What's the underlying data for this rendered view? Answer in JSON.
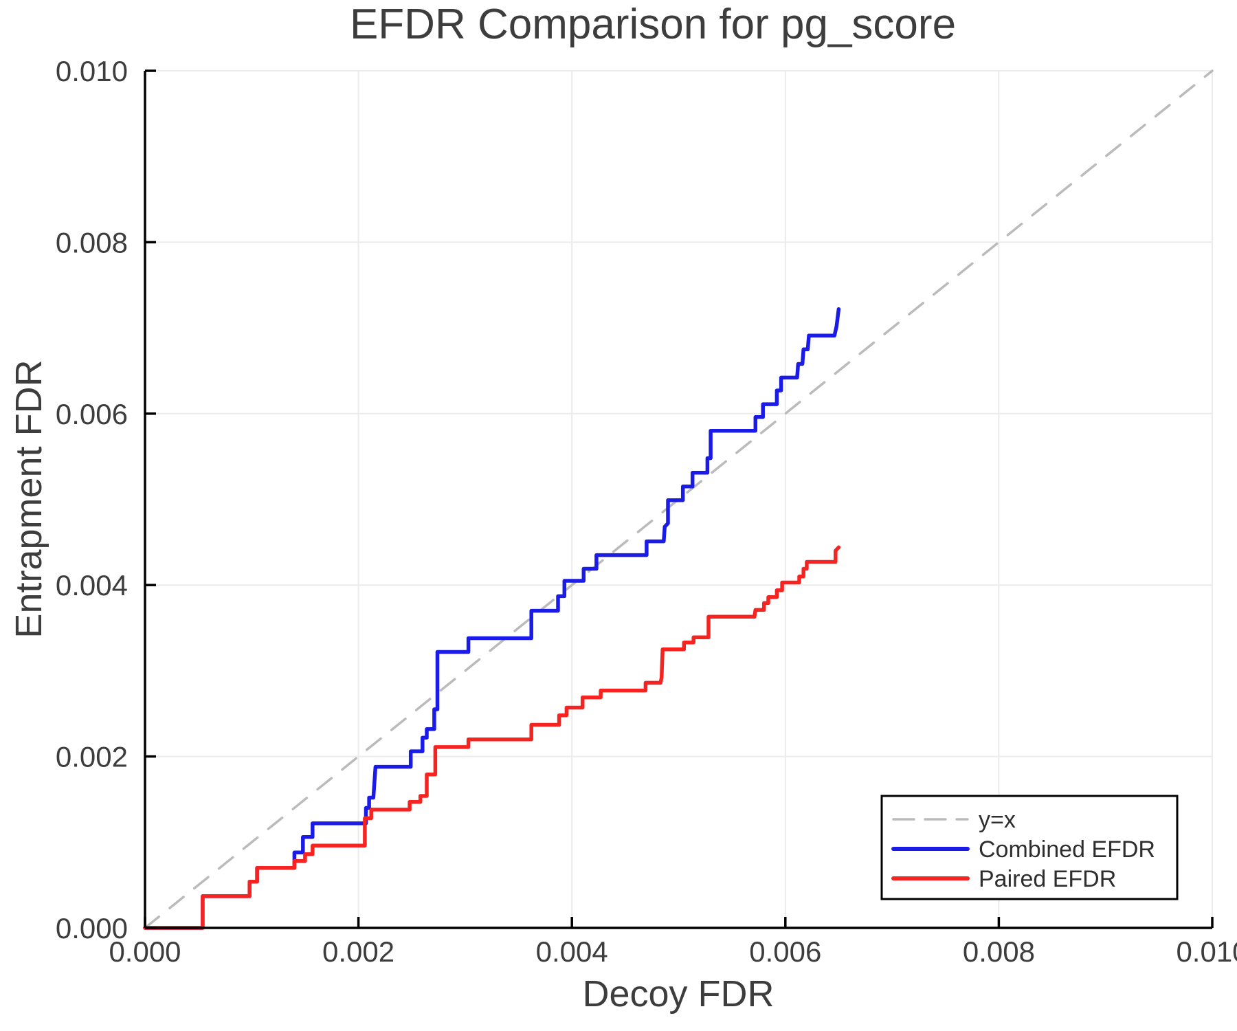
{
  "title": "EFDR Comparison for pg_score",
  "x_axis": {
    "label": "Decoy FDR",
    "tick_labels": [
      "0.000",
      "0.002",
      "0.004",
      "0.006",
      "0.008",
      "0.010"
    ],
    "tick_values": [
      0.0,
      0.002,
      0.004,
      0.006,
      0.008,
      0.01
    ],
    "range": [
      0.0,
      0.01
    ]
  },
  "y_axis": {
    "label": "Entrapment FDR",
    "tick_labels": [
      "0.000",
      "0.002",
      "0.004",
      "0.006",
      "0.008",
      "0.010"
    ],
    "tick_values": [
      0.0,
      0.002,
      0.004,
      0.006,
      0.008,
      0.01
    ],
    "range": [
      0.0,
      0.01
    ]
  },
  "legend": {
    "position": "lower right",
    "items": [
      {
        "label": "y=x",
        "color": "#bbbbbb",
        "style": "dashed"
      },
      {
        "label": "Combined EFDR",
        "color": "#1b1be8",
        "style": "solid"
      },
      {
        "label": "Paired EFDR",
        "color": "#f62420",
        "style": "solid"
      }
    ]
  },
  "colors": {
    "combined": "#1b1be8",
    "paired": "#f62420",
    "identity": "#bbbbbb",
    "grid": "#ebebeb",
    "axis": "#000000",
    "text": "#3d3d3d"
  },
  "chart_data": {
    "type": "line",
    "title": "EFDR Comparison for pg_score",
    "xlabel": "Decoy FDR",
    "ylabel": "Entrapment FDR",
    "xlim": [
      0.0,
      0.01
    ],
    "ylim": [
      0.0,
      0.01
    ],
    "grid": true,
    "legend_position": "lower right",
    "series": [
      {
        "name": "y=x",
        "style": "dashed",
        "color": "#bbbbbb",
        "points": [
          [
            0.0,
            0.0
          ],
          [
            0.01,
            0.01
          ]
        ]
      },
      {
        "name": "Combined EFDR",
        "style": "solid",
        "color": "#1b1be8",
        "points": [
          [
            0.0,
            0.0
          ],
          [
            0.00054,
            0.0
          ],
          [
            0.00054,
            0.00037
          ],
          [
            0.00098,
            0.00037
          ],
          [
            0.00098,
            0.00054
          ],
          [
            0.00105,
            0.00054
          ],
          [
            0.00105,
            0.0007
          ],
          [
            0.0014,
            0.0007
          ],
          [
            0.0014,
            0.00088
          ],
          [
            0.00148,
            0.00088
          ],
          [
            0.00148,
            0.00106
          ],
          [
            0.00157,
            0.00106
          ],
          [
            0.00157,
            0.00122
          ],
          [
            0.00207,
            0.00122
          ],
          [
            0.00207,
            0.0014
          ],
          [
            0.0021,
            0.0014
          ],
          [
            0.0021,
            0.00152
          ],
          [
            0.00214,
            0.00152
          ],
          [
            0.00216,
            0.00188
          ],
          [
            0.00249,
            0.00188
          ],
          [
            0.00249,
            0.00206
          ],
          [
            0.0026,
            0.00206
          ],
          [
            0.0026,
            0.00222
          ],
          [
            0.00264,
            0.00222
          ],
          [
            0.00264,
            0.00232
          ],
          [
            0.00271,
            0.00232
          ],
          [
            0.00271,
            0.00255
          ],
          [
            0.00274,
            0.00255
          ],
          [
            0.00274,
            0.00322
          ],
          [
            0.00303,
            0.00322
          ],
          [
            0.00303,
            0.00338
          ],
          [
            0.00362,
            0.00338
          ],
          [
            0.00362,
            0.0037
          ],
          [
            0.00387,
            0.0037
          ],
          [
            0.00387,
            0.00387
          ],
          [
            0.00393,
            0.00387
          ],
          [
            0.00393,
            0.00405
          ],
          [
            0.00411,
            0.00405
          ],
          [
            0.00411,
            0.00419
          ],
          [
            0.00423,
            0.00419
          ],
          [
            0.00423,
            0.00435
          ],
          [
            0.0047,
            0.00435
          ],
          [
            0.0047,
            0.00451
          ],
          [
            0.00486,
            0.00451
          ],
          [
            0.00487,
            0.00468
          ],
          [
            0.0049,
            0.00472
          ],
          [
            0.0049,
            0.00499
          ],
          [
            0.00504,
            0.00499
          ],
          [
            0.00504,
            0.00515
          ],
          [
            0.00513,
            0.00515
          ],
          [
            0.00513,
            0.00531
          ],
          [
            0.00527,
            0.00531
          ],
          [
            0.00527,
            0.00548
          ],
          [
            0.0053,
            0.00548
          ],
          [
            0.0053,
            0.0058
          ],
          [
            0.00572,
            0.0058
          ],
          [
            0.00572,
            0.00596
          ],
          [
            0.00579,
            0.00596
          ],
          [
            0.00579,
            0.00611
          ],
          [
            0.00592,
            0.00611
          ],
          [
            0.00592,
            0.00627
          ],
          [
            0.00596,
            0.00627
          ],
          [
            0.00596,
            0.00642
          ],
          [
            0.00611,
            0.00642
          ],
          [
            0.00612,
            0.00658
          ],
          [
            0.00616,
            0.00658
          ],
          [
            0.00617,
            0.00675
          ],
          [
            0.00621,
            0.00675
          ],
          [
            0.00622,
            0.00691
          ],
          [
            0.00646,
            0.00691
          ],
          [
            0.00648,
            0.00702
          ],
          [
            0.0065,
            0.00722
          ]
        ]
      },
      {
        "name": "Paired EFDR",
        "style": "solid",
        "color": "#f62420",
        "points": [
          [
            0.0,
            0.0
          ],
          [
            0.00054,
            0.0
          ],
          [
            0.00054,
            0.00037
          ],
          [
            0.00098,
            0.00037
          ],
          [
            0.00098,
            0.00054
          ],
          [
            0.00105,
            0.00054
          ],
          [
            0.00105,
            0.0007
          ],
          [
            0.0014,
            0.0007
          ],
          [
            0.0014,
            0.00078
          ],
          [
            0.0015,
            0.00078
          ],
          [
            0.0015,
            0.00086
          ],
          [
            0.00157,
            0.00086
          ],
          [
            0.00157,
            0.00096
          ],
          [
            0.00206,
            0.00096
          ],
          [
            0.00206,
            0.00128
          ],
          [
            0.00212,
            0.00128
          ],
          [
            0.00212,
            0.00138
          ],
          [
            0.00248,
            0.00138
          ],
          [
            0.00248,
            0.00147
          ],
          [
            0.00258,
            0.00147
          ],
          [
            0.00258,
            0.00154
          ],
          [
            0.00264,
            0.00154
          ],
          [
            0.00264,
            0.00179
          ],
          [
            0.00272,
            0.00179
          ],
          [
            0.00272,
            0.00211
          ],
          [
            0.00303,
            0.00211
          ],
          [
            0.00303,
            0.0022
          ],
          [
            0.00362,
            0.0022
          ],
          [
            0.00362,
            0.00237
          ],
          [
            0.00388,
            0.00237
          ],
          [
            0.00388,
            0.00248
          ],
          [
            0.00395,
            0.00248
          ],
          [
            0.00395,
            0.00257
          ],
          [
            0.0041,
            0.00257
          ],
          [
            0.0041,
            0.00269
          ],
          [
            0.00427,
            0.00269
          ],
          [
            0.00427,
            0.00277
          ],
          [
            0.00469,
            0.00277
          ],
          [
            0.00469,
            0.00286
          ],
          [
            0.00483,
            0.00286
          ],
          [
            0.00484,
            0.00292
          ],
          [
            0.00485,
            0.00325
          ],
          [
            0.00505,
            0.00325
          ],
          [
            0.00505,
            0.00333
          ],
          [
            0.00514,
            0.00333
          ],
          [
            0.00514,
            0.00339
          ],
          [
            0.00528,
            0.00339
          ],
          [
            0.00528,
            0.00363
          ],
          [
            0.00571,
            0.00363
          ],
          [
            0.00572,
            0.00371
          ],
          [
            0.0058,
            0.00371
          ],
          [
            0.0058,
            0.00379
          ],
          [
            0.00584,
            0.00379
          ],
          [
            0.00584,
            0.00386
          ],
          [
            0.00592,
            0.00386
          ],
          [
            0.00592,
            0.00394
          ],
          [
            0.00597,
            0.00394
          ],
          [
            0.00597,
            0.00403
          ],
          [
            0.00613,
            0.00403
          ],
          [
            0.00613,
            0.0041
          ],
          [
            0.00617,
            0.0041
          ],
          [
            0.00617,
            0.00419
          ],
          [
            0.0062,
            0.00419
          ],
          [
            0.0062,
            0.00427
          ],
          [
            0.00647,
            0.00427
          ],
          [
            0.00647,
            0.0044
          ],
          [
            0.0065,
            0.00444
          ]
        ]
      }
    ]
  }
}
